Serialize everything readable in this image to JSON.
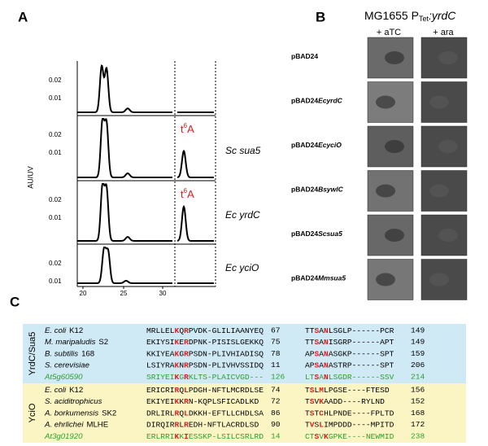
{
  "panel_a": {
    "label": "A",
    "y_axis_label": "AU/UV",
    "xticks": [
      "20",
      "25",
      "30"
    ],
    "traces": [
      {
        "yticks": [
          "0.02",
          "0.01"
        ]
      },
      {
        "yticks": [
          "0.02",
          "0.01"
        ],
        "label": "Sc sua5",
        "annotation": {
          "base": "t",
          "sup": "6",
          "rest": "A"
        }
      },
      {
        "yticks": [
          "0.02",
          "0.01"
        ],
        "label": "Ec yrdC",
        "annotation": {
          "base": "t",
          "sup": "6",
          "rest": "A"
        }
      },
      {
        "yticks": [
          "0.02",
          "0.01"
        ],
        "label": "Ec yciO"
      }
    ]
  },
  "panel_b": {
    "label": "B",
    "title": {
      "text": "MG1655 P",
      "subscript": "Tet",
      "gene": ":yrdC"
    },
    "columns": [
      "+ aTC",
      "+ ara"
    ],
    "rows": [
      {
        "prefix": "pBAD24"
      },
      {
        "prefix": "pBAD24",
        "gene": "EcyrdC"
      },
      {
        "prefix": "pBAD24",
        "gene": "EcyciO"
      },
      {
        "prefix": "pBAD24",
        "gene": "BsywlC"
      },
      {
        "prefix": "pBAD24",
        "gene": "Scsua5"
      },
      {
        "prefix": "pBAD24",
        "gene": "Mmsua5"
      }
    ]
  },
  "panel_c": {
    "label": "C",
    "groups": [
      {
        "name": "YrdC/Sua5",
        "color": "#cfe9f5",
        "rows": [
          {
            "species": "E. coli",
            "strain": "K12",
            "seq1": [
              "MRLLEL",
              "K",
              "Q",
              "R",
              "PVDK-GLILIAANYEQ"
            ],
            "end1": 67,
            "seq2": [
              "TT",
              "S",
              "A",
              "N",
              "LSGLP------PCR"
            ],
            "end2": 149
          },
          {
            "species": "M. maripaludis",
            "strain": "S2",
            "seq1": [
              "EKIYSI",
              "K",
              "E",
              "R",
              "DPNK-PISISLGEKKQ"
            ],
            "end1": 75,
            "seq2": [
              "TT",
              "S",
              "A",
              "N",
              "ISGRP------APT"
            ],
            "end2": 149
          },
          {
            "species": "B. subtilis",
            "strain": "168",
            "seq1": [
              "KKIYEA",
              "K",
              "G",
              "R",
              "PSDN-PLIVHIADISQ"
            ],
            "end1": 78,
            "seq2": [
              "AP",
              "S",
              "A",
              "N",
              "ASGKP------SPT"
            ],
            "end2": 159
          },
          {
            "species": "S. cerevisiae",
            "seq1": [
              "LSIYRA",
              "K",
              "N",
              "R",
              "PSDN-PLIVHVSSIDQ"
            ],
            "end1": 11,
            "seq2": [
              "AP",
              "S",
              "A",
              "N",
              "ASTRP------SPT"
            ],
            "end2": 206
          },
          {
            "species": "At5g60590",
            "color": "#2ca02c",
            "seq1": [
              "SRIYEI",
              "K",
              "G",
              "R",
              "KLTS-PLAICVGD---"
            ],
            "end1": 126,
            "seq2": [
              "LT",
              "S",
              "A",
              "N",
              "LSGDR------SSV"
            ],
            "end2": 214
          }
        ]
      },
      {
        "name": "YciO",
        "color": "#fbf5c4",
        "rows": [
          {
            "species": "E. coli",
            "strain": "K12",
            "seq1": [
              "ERICRI",
              "R",
              "Q",
              "L",
              "PDGH-NFTLMCRDLSE"
            ],
            "end1": 74,
            "seq2": [
              "T",
              "S",
              "L",
              "M",
              "LPGSE----FTESD"
            ],
            "end2": 156
          },
          {
            "species": "S. aciditrophicus",
            "seq1": [
              "EKIYEI",
              "K",
              "K",
              "R",
              "N-KQPLSFICADLKD"
            ],
            "end1": 72,
            "seq2": [
              "T",
              "S",
              "V",
              "K",
              "AADD----RYLND"
            ],
            "end2": 152
          },
          {
            "species": "A. borkumensis",
            "strain": "SK2",
            "seq1": [
              "DRLIRL",
              "R",
              "Q",
              "L",
              "DKKH-EFTLLCHDLSA"
            ],
            "end1": 86,
            "seq2": [
              "T",
              "S",
              "T",
              "C",
              "HLPNDE----FPLTD"
            ],
            "end2": 168
          },
          {
            "species": "A. ehrlichei",
            "strain": "MLHE",
            "seq1": [
              "DIRQIR",
              "R",
              "L",
              "R",
              "EDH-NFTLACRDLSD"
            ],
            "end1": 90,
            "seq2": [
              "T",
              "V",
              "S",
              "L",
              "IMPDDD----MPITD"
            ],
            "end2": 172
          },
          {
            "species": "At3g01920",
            "color": "#2ca02c",
            "seq1": [
              "ERLRRI",
              "K",
              "K",
              "I",
              "ESSKP-LSILCSRLRD"
            ],
            "end1": 14,
            "seq2": [
              "CT",
              "S",
              "V",
              "K",
              "GPKE----NEWMID"
            ],
            "end2": 238
          }
        ]
      }
    ]
  }
}
